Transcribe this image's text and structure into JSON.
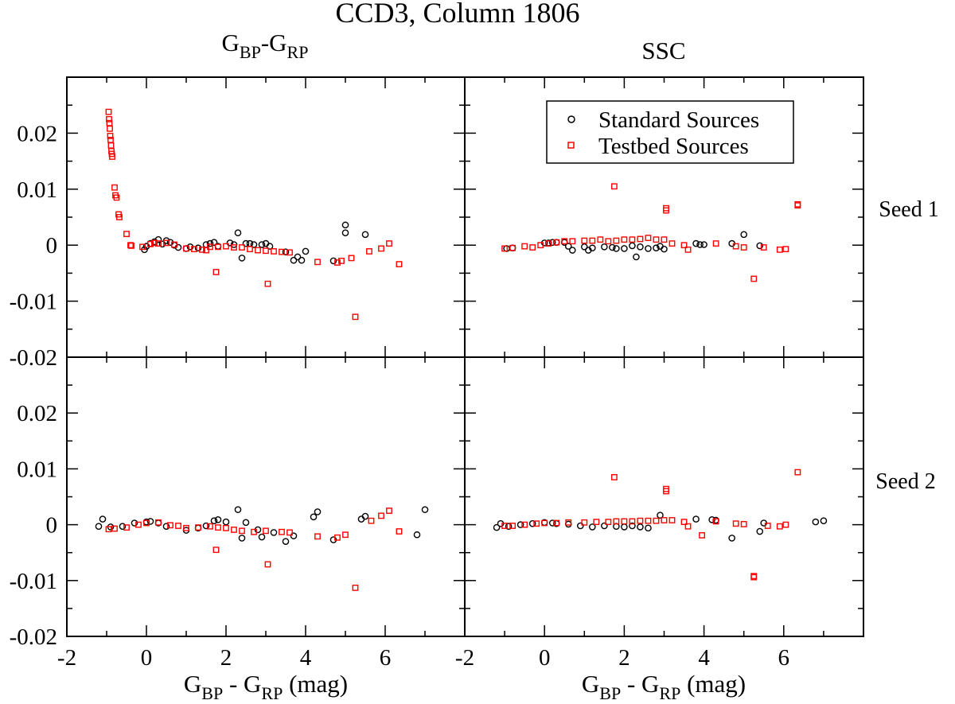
{
  "chart_data": {
    "type": "scatter",
    "title": "CCD3, Column 1806",
    "column_titles": [
      {
        "base": "G",
        "sub1": "BP",
        "mid": "-G",
        "sub2": "RP"
      },
      {
        "text": "SSC"
      }
    ],
    "row_labels": [
      "Seed 1",
      "Seed 2"
    ],
    "xlabel": {
      "base": "G",
      "sub1": "BP",
      "mid": " - G",
      "sub2": "RP",
      "tail": " (mag)"
    },
    "xlim": [
      -2,
      8
    ],
    "ylim": [
      -0.02,
      0.03
    ],
    "x_ticks": [
      -2,
      0,
      2,
      4,
      6
    ],
    "x_tick_labels": [
      "-2",
      "0",
      "2",
      "4",
      "6"
    ],
    "y_ticks": [
      -0.02,
      -0.01,
      0,
      0.01,
      0.02
    ],
    "y_tick_labels": [
      "-0.02",
      "-0.01",
      "0",
      "0.01",
      "0.02"
    ],
    "legend": {
      "placement": "top-right of top-right panel",
      "entries": [
        {
          "name": "Standard Sources",
          "marker": "circle",
          "color": "#000000"
        },
        {
          "name": "Testbed Sources",
          "marker": "square",
          "color": "#ff0000"
        }
      ]
    },
    "panels": [
      {
        "id": "gbp-grp-seed1",
        "standard": [
          [
            -0.05,
            -0.0008
          ],
          [
            0,
            -0.0002
          ],
          [
            0.1,
            0.0003
          ],
          [
            0.2,
            0.0006
          ],
          [
            0.3,
            0.001
          ],
          [
            0.4,
            0.0002
          ],
          [
            0.5,
            0.0008
          ],
          [
            0.6,
            0.0005
          ],
          [
            0.7,
            0
          ],
          [
            0.8,
            -0.0004
          ],
          [
            1,
            -0.0006
          ],
          [
            1.1,
            -0.0003
          ],
          [
            1.3,
            -0.0005
          ],
          [
            1.5,
            0.0001
          ],
          [
            1.6,
            0.0003
          ],
          [
            1.7,
            0.0005
          ],
          [
            1.8,
            -0.0002
          ],
          [
            2.1,
            0.0004
          ],
          [
            2.2,
            0.0001
          ],
          [
            2.3,
            0.0022
          ],
          [
            2.4,
            -0.0023
          ],
          [
            2.5,
            0.0003
          ],
          [
            2.6,
            0.0003
          ],
          [
            2.7,
            0.0001
          ],
          [
            2.9,
            0.0001
          ],
          [
            3,
            0.0003
          ],
          [
            3.1,
            -0.0002
          ],
          [
            3.5,
            -0.0012
          ],
          [
            3.7,
            -0.0027
          ],
          [
            3.8,
            -0.0021
          ],
          [
            3.9,
            -0.0027
          ],
          [
            4,
            -0.0011
          ],
          [
            4.7,
            -0.0028
          ],
          [
            5,
            0.0036
          ],
          [
            5,
            0.0022
          ],
          [
            5.5,
            0.0019
          ]
        ],
        "testbed": [
          [
            -0.95,
            0.0238
          ],
          [
            -0.94,
            0.0225
          ],
          [
            -0.93,
            0.0218
          ],
          [
            -0.92,
            0.0208
          ],
          [
            -0.91,
            0.0195
          ],
          [
            -0.9,
            0.0188
          ],
          [
            -0.89,
            0.0178
          ],
          [
            -0.88,
            0.0168
          ],
          [
            -0.87,
            0.0163
          ],
          [
            -0.86,
            0.0158
          ],
          [
            -0.8,
            0.0103
          ],
          [
            -0.78,
            0.0089
          ],
          [
            -0.75,
            0.0085
          ],
          [
            -0.7,
            0.0055
          ],
          [
            -0.68,
            0.005
          ],
          [
            -0.5,
            0.002
          ],
          [
            -0.4,
            0
          ],
          [
            -0.38,
            -0.0001
          ],
          [
            -0.1,
            -0.0003
          ],
          [
            0.1,
            0.0002
          ],
          [
            0.2,
            0.0004
          ],
          [
            0.3,
            0.0003
          ],
          [
            0.5,
            0.0004
          ],
          [
            0.7,
            0.0001
          ],
          [
            1,
            -0.0006
          ],
          [
            1.2,
            -0.0007
          ],
          [
            1.4,
            -0.0008
          ],
          [
            1.5,
            -0.0009
          ],
          [
            1.6,
            -0.0003
          ],
          [
            1.8,
            -0.0003
          ],
          [
            2,
            -0.0002
          ],
          [
            2.2,
            -0.0004
          ],
          [
            2.4,
            -0.0004
          ],
          [
            2.6,
            -0.0007
          ],
          [
            2.8,
            -0.0009
          ],
          [
            3,
            -0.001
          ],
          [
            3.2,
            -0.0011
          ],
          [
            3.4,
            -0.0012
          ],
          [
            3.6,
            -0.0013
          ],
          [
            1.75,
            -0.0048
          ],
          [
            3.05,
            -0.0069
          ],
          [
            4.3,
            -0.003
          ],
          [
            4.8,
            -0.0031
          ],
          [
            4.9,
            -0.0028
          ],
          [
            5.15,
            -0.0023
          ],
          [
            5.25,
            -0.0128
          ],
          [
            5.6,
            -0.0011
          ],
          [
            5.9,
            -0.0006
          ],
          [
            6.1,
            0.0003
          ],
          [
            6.35,
            -0.0034
          ]
        ]
      },
      {
        "id": "ssc-seed1",
        "standard": [
          [
            -0.95,
            -0.0006
          ],
          [
            -0.8,
            -0.0005
          ],
          [
            0,
            0.0004
          ],
          [
            0.1,
            0.0004
          ],
          [
            0.2,
            0.0005
          ],
          [
            0.3,
            0.0005
          ],
          [
            0.5,
            0.0005
          ],
          [
            0.6,
            -0.0002
          ],
          [
            0.7,
            -0.0009
          ],
          [
            1,
            -0.0003
          ],
          [
            1.1,
            -0.0009
          ],
          [
            1.2,
            -0.0005
          ],
          [
            1.5,
            -0.0003
          ],
          [
            1.7,
            -0.0004
          ],
          [
            1.8,
            -0.0006
          ],
          [
            2,
            -0.0006
          ],
          [
            2.2,
            -0.0001
          ],
          [
            2.3,
            -0.0021
          ],
          [
            2.4,
            -0.0003
          ],
          [
            2.6,
            -0.0006
          ],
          [
            2.8,
            -0.0005
          ],
          [
            2.9,
            -0.0002
          ],
          [
            3,
            -0.0007
          ],
          [
            3.8,
            0.0003
          ],
          [
            3.9,
            0.0001
          ],
          [
            4,
            0.0001
          ],
          [
            4.7,
            0.0003
          ],
          [
            5,
            0.0019
          ],
          [
            5.4,
            -0.0001
          ]
        ],
        "testbed": [
          [
            -1,
            -0.0006
          ],
          [
            -0.8,
            -0.0005
          ],
          [
            -0.5,
            -0.0002
          ],
          [
            -0.3,
            -0.0004
          ],
          [
            -0.1,
            0
          ],
          [
            0.1,
            0.0003
          ],
          [
            0.3,
            0.0005
          ],
          [
            0.5,
            0.0007
          ],
          [
            0.7,
            0.0007
          ],
          [
            1,
            0.0008
          ],
          [
            1.2,
            0.0008
          ],
          [
            1.4,
            0.001
          ],
          [
            1.6,
            0.0007
          ],
          [
            1.8,
            0.0008
          ],
          [
            2,
            0.001
          ],
          [
            2.2,
            0.001
          ],
          [
            2.4,
            0.0011
          ],
          [
            2.6,
            0.0013
          ],
          [
            2.8,
            0.001
          ],
          [
            3,
            0.001
          ],
          [
            3.2,
            0.0003
          ],
          [
            3.5,
            0
          ],
          [
            1.75,
            0.0105
          ],
          [
            3.05,
            0.0066
          ],
          [
            3.05,
            0.0062
          ],
          [
            3.6,
            -0.0008
          ],
          [
            4.3,
            0.0003
          ],
          [
            4.8,
            -0.0002
          ],
          [
            5,
            -0.0004
          ],
          [
            5.25,
            -0.006
          ],
          [
            5.5,
            -0.0004
          ],
          [
            5.9,
            -0.0008
          ],
          [
            6.05,
            -0.0007
          ],
          [
            6.35,
            0.0073
          ],
          [
            6.35,
            0.0071
          ]
        ]
      },
      {
        "id": "gbp-grp-seed2",
        "standard": [
          [
            -1.2,
            -0.0003
          ],
          [
            -1.1,
            0.001
          ],
          [
            -0.9,
            -0.0004
          ],
          [
            -0.6,
            -0.0003
          ],
          [
            -0.3,
            0.0003
          ],
          [
            0,
            0.0005
          ],
          [
            0.1,
            0.0006
          ],
          [
            0.3,
            0.0003
          ],
          [
            0.5,
            -0.0003
          ],
          [
            1,
            -0.001
          ],
          [
            1.3,
            -0.0006
          ],
          [
            1.5,
            -0.0002
          ],
          [
            1.7,
            0.0007
          ],
          [
            1.8,
            0.0009
          ],
          [
            2,
            0.0005
          ],
          [
            2.3,
            0.0027
          ],
          [
            2.4,
            -0.0024
          ],
          [
            2.5,
            0.0004
          ],
          [
            2.8,
            -0.0009
          ],
          [
            2.9,
            -0.0022
          ],
          [
            3.2,
            -0.0014
          ],
          [
            3.5,
            -0.003
          ],
          [
            3.7,
            -0.002
          ],
          [
            4.2,
            0.0014
          ],
          [
            4.3,
            0.0023
          ],
          [
            4.7,
            -0.0027
          ],
          [
            5.4,
            0.001
          ],
          [
            5.5,
            0.0015
          ],
          [
            6.8,
            -0.0018
          ],
          [
            7,
            0.0027
          ]
        ],
        "testbed": [
          [
            -0.95,
            -0.0008
          ],
          [
            -0.8,
            -0.0007
          ],
          [
            -0.5,
            -0.0005
          ],
          [
            -0.2,
            0
          ],
          [
            0,
            0.0003
          ],
          [
            0.3,
            0.0004
          ],
          [
            0.6,
            -0.0001
          ],
          [
            0.8,
            -0.0002
          ],
          [
            1,
            -0.0006
          ],
          [
            1.3,
            -0.0005
          ],
          [
            1.6,
            -0.0003
          ],
          [
            1.8,
            -0.0005
          ],
          [
            2,
            -0.0006
          ],
          [
            2.2,
            -0.0009
          ],
          [
            2.4,
            -0.0011
          ],
          [
            2.7,
            -0.0013
          ],
          [
            3,
            -0.0011
          ],
          [
            3.4,
            -0.0013
          ],
          [
            3.6,
            -0.0014
          ],
          [
            1.75,
            -0.0045
          ],
          [
            3.05,
            -0.0071
          ],
          [
            4.3,
            -0.0021
          ],
          [
            4.8,
            -0.0023
          ],
          [
            5,
            -0.0018
          ],
          [
            5.25,
            -0.0113
          ],
          [
            5.65,
            0.0007
          ],
          [
            5.9,
            0.0016
          ],
          [
            6.1,
            0.0025
          ],
          [
            6.35,
            -0.0012
          ]
        ]
      },
      {
        "id": "ssc-seed2",
        "standard": [
          [
            -1.2,
            -0.0005
          ],
          [
            -1.1,
            0.0002
          ],
          [
            -0.9,
            -0.0003
          ],
          [
            -0.6,
            0
          ],
          [
            -0.3,
            0.0002
          ],
          [
            0,
            0.0004
          ],
          [
            0.2,
            0.0003
          ],
          [
            0.3,
            0.0002
          ],
          [
            0.6,
            0.0001
          ],
          [
            0.9,
            -0.0002
          ],
          [
            1.2,
            -0.0004
          ],
          [
            1.5,
            -0.0002
          ],
          [
            1.8,
            -0.0003
          ],
          [
            2,
            -0.0004
          ],
          [
            2.2,
            -0.0002
          ],
          [
            2.4,
            -0.0004
          ],
          [
            2.6,
            -0.0006
          ],
          [
            2.9,
            0.0017
          ],
          [
            3.8,
            0.001
          ],
          [
            4.2,
            0.0009
          ],
          [
            4.3,
            0.0008
          ],
          [
            4.7,
            -0.0024
          ],
          [
            5.4,
            -0.0012
          ],
          [
            5.5,
            0.0003
          ],
          [
            6.8,
            0.0005
          ],
          [
            7,
            0.0007
          ]
        ],
        "testbed": [
          [
            -1,
            -0.0002
          ],
          [
            -0.8,
            -0.0002
          ],
          [
            -0.5,
            0
          ],
          [
            -0.2,
            0.0002
          ],
          [
            0,
            0.0003
          ],
          [
            0.3,
            0.0003
          ],
          [
            0.6,
            0.0004
          ],
          [
            1,
            0.0004
          ],
          [
            1.3,
            0.0005
          ],
          [
            1.6,
            0.0005
          ],
          [
            1.8,
            0.0006
          ],
          [
            2,
            0.0006
          ],
          [
            2.2,
            0.0006
          ],
          [
            2.4,
            0.0007
          ],
          [
            2.6,
            0.0007
          ],
          [
            2.8,
            0.0007
          ],
          [
            3,
            0.0008
          ],
          [
            3.2,
            0.0008
          ],
          [
            3.5,
            0.0005
          ],
          [
            1.75,
            0.0085
          ],
          [
            3.05,
            0.0064
          ],
          [
            3.05,
            0.006
          ],
          [
            3.6,
            -0.0003
          ],
          [
            3.95,
            -0.0019
          ],
          [
            4.3,
            0.0006
          ],
          [
            4.8,
            0.0002
          ],
          [
            5,
            0.0001
          ],
          [
            5.25,
            -0.0092
          ],
          [
            5.25,
            -0.0094
          ],
          [
            5.6,
            -0.0002
          ],
          [
            5.9,
            -0.0003
          ],
          [
            6.05,
            0
          ],
          [
            6.35,
            0.0094
          ]
        ]
      }
    ]
  }
}
